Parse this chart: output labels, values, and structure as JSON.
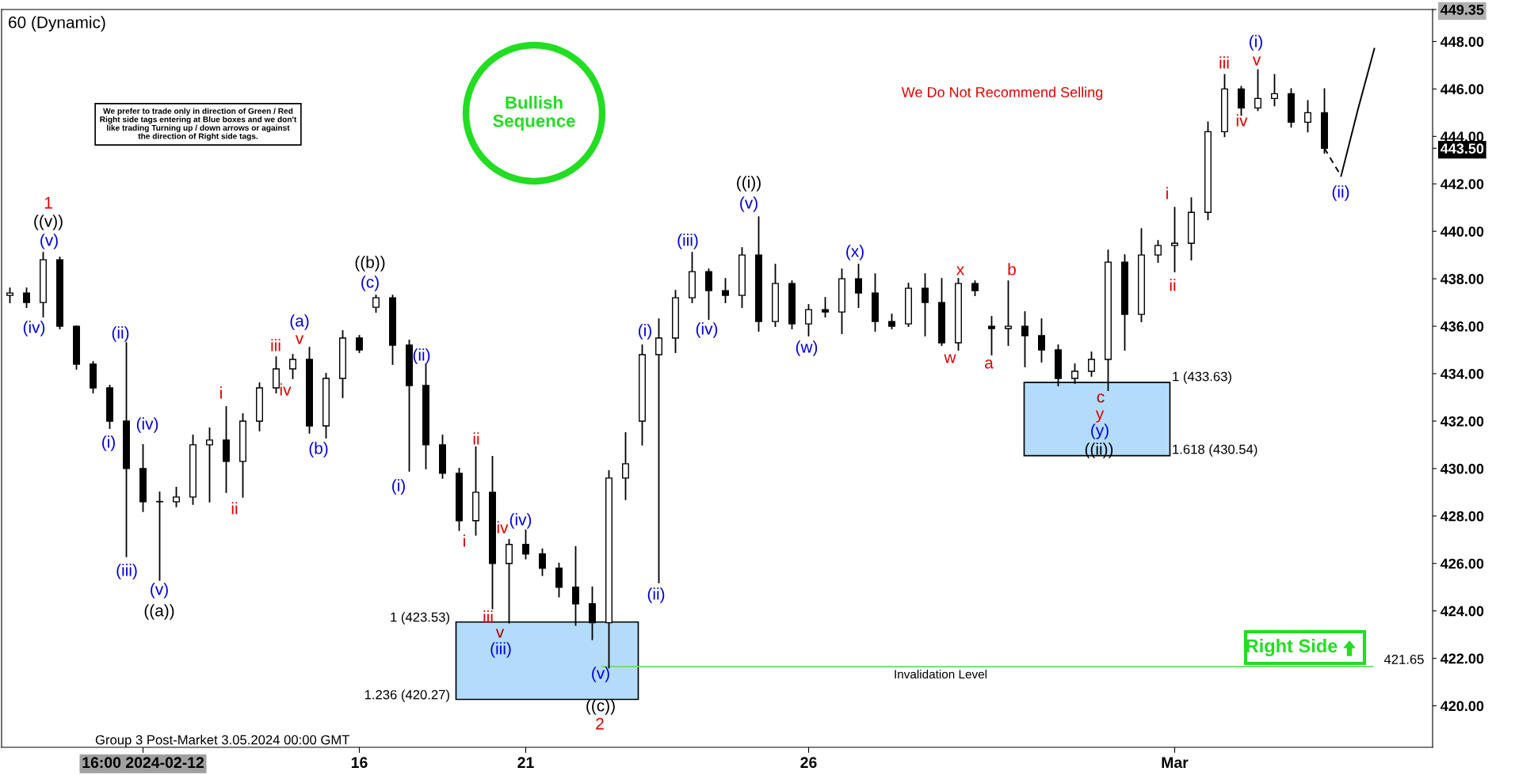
{
  "chart_data": {
    "type": "candlestick",
    "title": "60 (Dynamic)",
    "color": "#000000",
    "categories": [
      null,
      null,
      null,
      null,
      null,
      null,
      null,
      null,
      "16:00 2024-02-12",
      null,
      null,
      null,
      null,
      null,
      null,
      null,
      null,
      null,
      null,
      null,
      null,
      "16",
      null,
      null,
      null,
      null,
      null,
      null,
      null,
      null,
      null,
      "21",
      null,
      null,
      null,
      null,
      null,
      null,
      null,
      null,
      null,
      null,
      null,
      null,
      null,
      null,
      null,
      null,
      "26",
      null,
      null,
      null,
      null,
      null,
      null,
      null,
      null,
      null,
      null,
      null,
      null,
      null,
      null,
      null,
      null,
      null,
      null,
      null,
      null,
      null,
      "Mar",
      null,
      null,
      null,
      null,
      null,
      null,
      null,
      null,
      null,
      null,
      null,
      null,
      null,
      null,
      null
    ],
    "ohlc": [
      [
        437.3,
        437.6,
        437.0,
        437.4
      ],
      [
        437.4,
        437.6,
        436.8,
        437.0
      ],
      [
        437.0,
        439.1,
        436.4,
        438.8
      ],
      [
        438.8,
        438.9,
        435.9,
        436.0
      ],
      [
        436.0,
        436.0,
        434.2,
        434.4
      ],
      [
        434.4,
        434.5,
        433.2,
        433.4
      ],
      [
        433.4,
        433.5,
        431.7,
        432.0
      ],
      [
        432.0,
        435.3,
        426.3,
        430.0
      ],
      [
        430.0,
        431.0,
        428.2,
        428.6
      ],
      [
        428.6,
        429.0,
        425.3,
        428.6
      ],
      [
        428.6,
        429.2,
        428.4,
        428.8
      ],
      [
        428.8,
        431.4,
        428.5,
        431.0
      ],
      [
        431.0,
        431.7,
        428.6,
        431.2
      ],
      [
        431.2,
        432.6,
        429.0,
        430.3
      ],
      [
        430.3,
        432.3,
        428.8,
        432.0
      ],
      [
        432.0,
        433.6,
        431.6,
        433.4
      ],
      [
        433.4,
        434.7,
        433.2,
        434.2
      ],
      [
        434.2,
        434.8,
        433.8,
        434.6
      ],
      [
        434.6,
        435.1,
        431.5,
        431.8
      ],
      [
        431.8,
        434.0,
        431.3,
        433.8
      ],
      [
        433.8,
        435.8,
        433.0,
        435.5
      ],
      [
        435.5,
        435.6,
        434.9,
        435.0
      ],
      [
        436.8,
        437.3,
        436.6,
        437.2
      ],
      [
        437.2,
        437.3,
        434.4,
        435.2
      ],
      [
        435.2,
        435.4,
        429.9,
        433.5
      ],
      [
        433.5,
        434.4,
        430.0,
        431.0
      ],
      [
        431.0,
        431.4,
        429.6,
        429.8
      ],
      [
        429.8,
        430.0,
        427.4,
        427.8
      ],
      [
        427.8,
        430.9,
        427.2,
        429.0
      ],
      [
        429.0,
        430.5,
        424.1,
        426.0
      ],
      [
        426.0,
        427.0,
        423.5,
        426.8
      ],
      [
        426.8,
        427.4,
        426.2,
        426.4
      ],
      [
        426.4,
        426.6,
        425.5,
        425.8
      ],
      [
        425.8,
        426.0,
        424.6,
        425.0
      ],
      [
        425.0,
        426.7,
        423.4,
        424.3
      ],
      [
        424.3,
        425.0,
        422.8,
        423.5
      ],
      [
        423.5,
        429.9,
        421.6,
        429.6
      ],
      [
        429.6,
        431.5,
        428.7,
        430.2
      ],
      [
        432.0,
        435.2,
        431.0,
        434.8
      ],
      [
        434.8,
        436.3,
        425.2,
        435.5
      ],
      [
        435.5,
        437.5,
        434.9,
        437.2
      ],
      [
        437.2,
        439.1,
        437.0,
        438.3
      ],
      [
        438.3,
        438.4,
        436.3,
        437.5
      ],
      [
        437.5,
        438.0,
        437.0,
        437.3
      ],
      [
        437.3,
        439.3,
        436.8,
        439.0
      ],
      [
        439.0,
        440.6,
        435.8,
        436.2
      ],
      [
        436.2,
        438.6,
        436.0,
        437.8
      ],
      [
        437.8,
        437.9,
        435.9,
        436.1
      ],
      [
        436.1,
        436.9,
        435.6,
        436.7
      ],
      [
        436.7,
        437.2,
        436.4,
        436.6
      ],
      [
        436.6,
        438.4,
        435.7,
        438.0
      ],
      [
        438.0,
        438.6,
        436.8,
        437.4
      ],
      [
        437.4,
        438.2,
        435.8,
        436.2
      ],
      [
        436.2,
        436.5,
        435.9,
        436.0
      ],
      [
        436.1,
        437.8,
        436.0,
        437.6
      ],
      [
        437.6,
        438.2,
        435.6,
        437.0
      ],
      [
        437.0,
        438.0,
        435.2,
        435.3
      ],
      [
        435.3,
        438.0,
        435.0,
        437.8
      ],
      [
        437.8,
        437.9,
        437.3,
        437.5
      ],
      [
        436.0,
        436.4,
        434.8,
        435.9
      ],
      [
        435.9,
        437.9,
        435.2,
        436.0
      ],
      [
        436.0,
        436.6,
        434.3,
        435.6
      ],
      [
        435.6,
        436.3,
        434.5,
        435.0
      ],
      [
        435.0,
        435.2,
        433.5,
        433.8
      ],
      [
        433.8,
        434.4,
        433.6,
        434.1
      ],
      [
        434.1,
        434.9,
        433.9,
        434.6
      ],
      [
        434.6,
        439.2,
        433.3,
        438.7
      ],
      [
        438.7,
        439.0,
        435.0,
        436.5
      ],
      [
        436.5,
        440.1,
        436.2,
        439.0
      ],
      [
        439.0,
        439.6,
        438.7,
        439.4
      ],
      [
        439.4,
        441.0,
        438.3,
        439.5
      ],
      [
        439.5,
        441.4,
        438.8,
        440.8
      ],
      [
        440.8,
        444.6,
        440.5,
        444.2
      ],
      [
        444.2,
        446.6,
        444.0,
        446.0
      ],
      [
        446.0,
        446.1,
        444.9,
        445.2
      ],
      [
        445.2,
        446.8,
        445.1,
        445.6
      ],
      [
        445.6,
        446.6,
        445.3,
        445.8
      ],
      [
        445.8,
        446.0,
        444.4,
        444.6
      ],
      [
        444.6,
        445.5,
        444.2,
        445.0
      ],
      [
        445.0,
        446.0,
        443.3,
        443.5
      ],
      null,
      null,
      null,
      null,
      null,
      null
    ],
    "series": [
      {
        "type": "line",
        "color": "#000000",
        "line_style": "dashed",
        "values": [
          null,
          null,
          null,
          null,
          null,
          null,
          null,
          null,
          null,
          null,
          null,
          null,
          null,
          null,
          null,
          null,
          null,
          null,
          null,
          null,
          null,
          null,
          null,
          null,
          null,
          null,
          null,
          null,
          null,
          null,
          null,
          null,
          null,
          null,
          null,
          null,
          null,
          null,
          null,
          null,
          null,
          null,
          null,
          null,
          null,
          null,
          null,
          null,
          null,
          null,
          null,
          null,
          null,
          null,
          null,
          null,
          null,
          null,
          null,
          null,
          null,
          null,
          null,
          null,
          null,
          null,
          null,
          null,
          null,
          null,
          null,
          null,
          null,
          null,
          null,
          null,
          null,
          null,
          null,
          443.5,
          442.33,
          null,
          null,
          null,
          null,
          null
        ]
      },
      {
        "type": "line",
        "color": "#000000",
        "line_style": "solid",
        "values": [
          null,
          null,
          null,
          null,
          null,
          null,
          null,
          null,
          null,
          null,
          null,
          null,
          null,
          null,
          null,
          null,
          null,
          null,
          null,
          null,
          null,
          null,
          null,
          null,
          null,
          null,
          null,
          null,
          null,
          null,
          null,
          null,
          null,
          null,
          null,
          null,
          null,
          null,
          null,
          null,
          null,
          null,
          null,
          null,
          null,
          null,
          null,
          null,
          null,
          null,
          null,
          null,
          null,
          null,
          null,
          null,
          null,
          null,
          null,
          null,
          null,
          null,
          null,
          null,
          null,
          null,
          null,
          null,
          null,
          null,
          null,
          null,
          null,
          null,
          null,
          null,
          null,
          null,
          null,
          null,
          442.33,
          445.1,
          447.7,
          null,
          null,
          null
        ]
      }
    ],
    "ylim": [
      418.25,
      449.35
    ],
    "yticks": [
      {
        "value": 420,
        "label": "420.00"
      },
      {
        "value": 422,
        "label": "422.00"
      },
      {
        "value": 424,
        "label": "424.00"
      },
      {
        "value": 426,
        "label": "426.00"
      },
      {
        "value": 428,
        "label": "428.00"
      },
      {
        "value": 430,
        "label": "430.00"
      },
      {
        "value": 432,
        "label": "432.00"
      },
      {
        "value": 434,
        "label": "434.00"
      },
      {
        "value": 436,
        "label": "436.00"
      },
      {
        "value": 438,
        "label": "438.00"
      },
      {
        "value": 440,
        "label": "440.00"
      },
      {
        "value": 442,
        "label": "442.00"
      },
      {
        "value": 444,
        "label": "444.00"
      },
      {
        "value": 446,
        "label": "446.00"
      },
      {
        "value": 448,
        "label": "448.00"
      },
      {
        "value": 449.35,
        "label": "449.35"
      },
      {
        "value": 443.5,
        "label": "443.50"
      }
    ],
    "ref_lines": [
      {
        "axis": "y",
        "value": 421.65,
        "label": "421.65",
        "color": "#66dd66"
      }
    ],
    "bands": [
      {
        "axis": "y",
        "from": 420.27,
        "to": 423.53,
        "color": "#b3dcfa"
      },
      {
        "axis": "y",
        "from": 430.54,
        "to": 433.63,
        "color": "#b3dcfa"
      }
    ],
    "annotations": [
      "1",
      "((v))",
      "(v)",
      "(iv)",
      "(ii)",
      "(i)",
      "(iv)",
      "(iii)",
      "(v)",
      "((a))",
      "i",
      "ii",
      "iii",
      "iv",
      "(a)",
      "v",
      "(b)",
      "((b))",
      "(c)",
      "(i)",
      "(ii)",
      "i",
      "ii",
      "iii",
      "iv",
      "v",
      "(iii)",
      "(iv)",
      "(v)",
      "((c))",
      "2",
      "(i)",
      "(ii)",
      "(iii)",
      "(iv)",
      "((i))",
      "(v)",
      "(w)",
      "(x)",
      "w",
      "x",
      "a",
      "b",
      "c",
      "y",
      "(y)",
      "((ii))",
      "i",
      "ii",
      "iii",
      "iv",
      "(i)",
      "v",
      "(ii)",
      "1 (423.53)",
      "1.236 (420.27)",
      "1 (433.63)",
      "1.618 (430.54)",
      "Invalidation Level",
      "We prefer to trade only in direction of Green / Red\nRight side tags entering at Blue boxes and we don't\nlike trading Turning up / down arrows or against\nthe direction of Right side tags.",
      "Bullish\nSequence",
      "We Do Not Recommend Selling",
      "Right Side",
      "Group 3 Post-Market 3.05.2024 00:00 GMT"
    ]
  }
}
